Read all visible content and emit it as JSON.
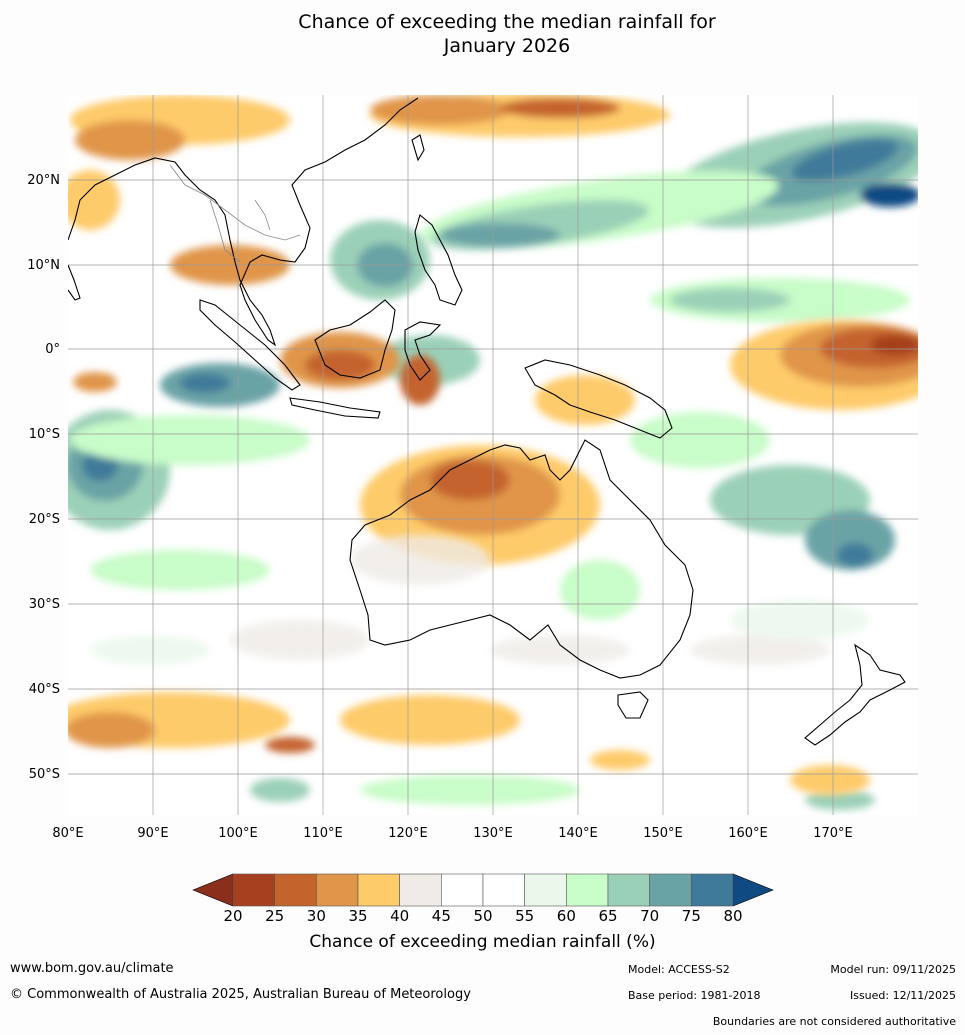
{
  "title_line1": "Chance of exceeding the median rainfall for",
  "title_line2": "January 2026",
  "map": {
    "lon_ticks": [
      "80°E",
      "90°E",
      "100°E",
      "110°E",
      "120°E",
      "130°E",
      "140°E",
      "150°E",
      "160°E",
      "170°E"
    ],
    "lat_ticks": [
      "20°N",
      "10°N",
      "0°",
      "10°S",
      "20°S",
      "30°S",
      "40°S",
      "50°S"
    ],
    "lon_range": [
      80,
      180
    ],
    "lat_range": [
      -55,
      30
    ],
    "land_outline_color": "#000000",
    "border_color": "#888888"
  },
  "colorbar": {
    "ticks": [
      "20",
      "25",
      "30",
      "35",
      "40",
      "45",
      "50",
      "55",
      "60",
      "65",
      "70",
      "75",
      "80"
    ],
    "colors": [
      "#a6401f",
      "#c4642d",
      "#e0954a",
      "#fecb6a",
      "#efebe6",
      "#ffffff",
      "#ffffff",
      "#eaf7ea",
      "#c8fcc8",
      "#9bd0b8",
      "#6aa3a6",
      "#3f7a9a"
    ],
    "under_color": "#8a2f1c",
    "over_color": "#0f4a82",
    "title": "Chance of exceeding median rainfall (%)"
  },
  "footer": {
    "website": "www.bom.gov.au/climate",
    "copyright": "© Commonwealth of Australia 2025, Australian Bureau of Meteorology",
    "model": "Model: ACCESS-S2",
    "base_period": "Base period: 1981-2018",
    "model_run": "Model run: 09/11/2025",
    "issued": "Issued: 12/11/2025",
    "disclaimer": "Boundaries are not considered authoritative"
  }
}
